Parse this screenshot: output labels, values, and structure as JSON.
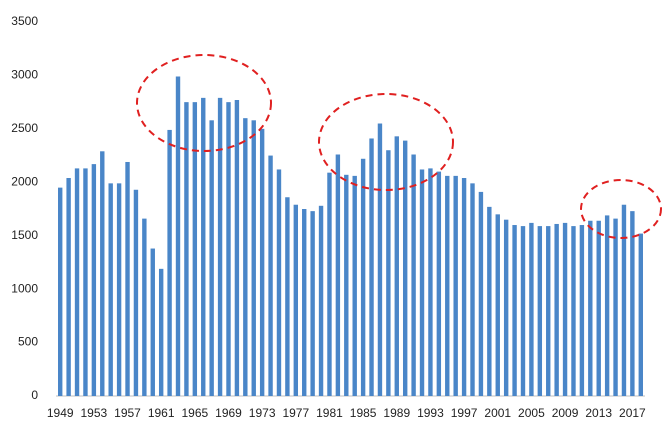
{
  "chart_data": {
    "type": "bar",
    "categories": [
      "1949",
      null,
      null,
      null,
      "1953",
      null,
      null,
      null,
      "1957",
      null,
      null,
      null,
      "1961",
      null,
      null,
      null,
      "1965",
      null,
      null,
      null,
      "1969",
      null,
      null,
      null,
      "1973",
      null,
      null,
      null,
      "1977",
      null,
      null,
      null,
      "1981",
      null,
      null,
      null,
      "1985",
      null,
      null,
      null,
      "1989",
      null,
      null,
      null,
      "1993",
      null,
      null,
      null,
      "1997",
      null,
      null,
      null,
      "2001",
      null,
      null,
      null,
      "2005",
      null,
      null,
      null,
      "2009",
      null,
      null,
      null,
      "2013",
      null,
      null,
      null,
      "2017",
      null
    ],
    "values": [
      1950,
      2040,
      2130,
      2130,
      2170,
      2290,
      1990,
      1990,
      2190,
      1930,
      1660,
      1380,
      1190,
      2490,
      2990,
      2750,
      2750,
      2790,
      2580,
      2790,
      2750,
      2770,
      2600,
      2580,
      2500,
      2250,
      2120,
      1860,
      1790,
      1750,
      1730,
      1780,
      2090,
      2260,
      2070,
      2060,
      2220,
      2410,
      2550,
      2300,
      2430,
      2390,
      2260,
      2120,
      2130,
      2100,
      2060,
      2060,
      2040,
      1990,
      1910,
      1770,
      1700,
      1650,
      1600,
      1590,
      1620,
      1590,
      1590,
      1610,
      1620,
      1590,
      1600,
      1640,
      1640,
      1690,
      1660,
      1790,
      1730,
      1520
    ],
    "color": "#4a86c8",
    "ylim": [
      0,
      3500
    ],
    "yticks": [
      0,
      500,
      1000,
      1500,
      2000,
      2500,
      3000,
      3500
    ],
    "grid": false
  }
}
